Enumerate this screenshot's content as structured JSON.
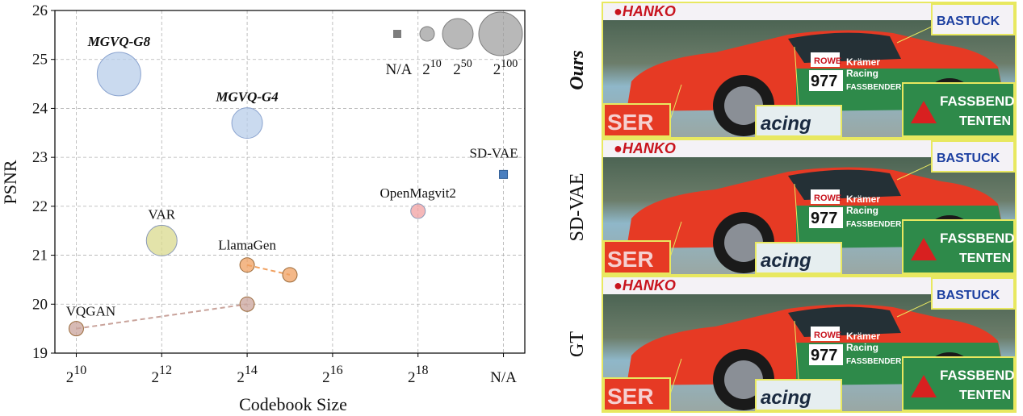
{
  "chart_data": {
    "type": "scatter",
    "xlabel": "Codebook Size",
    "ylabel": "PSNR",
    "ylim": [
      19,
      26
    ],
    "y_ticks": [
      "19",
      "20",
      "21",
      "22",
      "23",
      "24",
      "25",
      "26"
    ],
    "x_ticks": [
      {
        "base": "2",
        "exp": "10"
      },
      {
        "base": "2",
        "exp": "12"
      },
      {
        "base": "2",
        "exp": "14"
      },
      {
        "base": "2",
        "exp": "16"
      },
      {
        "base": "2",
        "exp": "18"
      },
      {
        "base": "N/A",
        "exp": ""
      }
    ],
    "grid": true,
    "series": [
      {
        "name": "MGVQ-G8",
        "x": "2^11",
        "y": 24.7,
        "size": "2^100",
        "color": "#b8cdea",
        "ours": true
      },
      {
        "name": "MGVQ-G4",
        "x": "2^14",
        "y": 23.7,
        "size": "2^50",
        "color": "#b8cdea",
        "ours": true
      },
      {
        "name": "VAR",
        "x": "2^12",
        "y": 21.3,
        "size": "2^50",
        "color": "#d9d98e"
      },
      {
        "name": "SD-VAE",
        "x": "N/A",
        "y": 22.65,
        "size": "N/A",
        "color": "#4a7fbf",
        "marker": "square"
      },
      {
        "name": "OpenMagvit2",
        "x": "2^18",
        "y": 21.9,
        "size": "2^10",
        "color": "#f2a0a2"
      },
      {
        "name": "LlamaGen",
        "points": [
          {
            "x": "2^14",
            "y": 20.8
          },
          {
            "x": "2^15",
            "y": 20.6
          }
        ],
        "size": "2^10",
        "color": "#f0a060",
        "connected": true
      },
      {
        "name": "VQGAN",
        "points": [
          {
            "x": "2^10",
            "y": 19.5
          },
          {
            "x": "2^14",
            "y": 20.0
          }
        ],
        "size": "2^10",
        "color": "#c9a39b",
        "connected": true
      }
    ],
    "size_legend": {
      "placement": "top-right",
      "entries": [
        {
          "base": "N/A",
          "exp": ""
        },
        {
          "base": "2",
          "exp": "10"
        },
        {
          "base": "2",
          "exp": "50"
        },
        {
          "base": "2",
          "exp": "100"
        }
      ]
    }
  },
  "comparison": {
    "rows": [
      {
        "label": "Ours",
        "ours": true
      },
      {
        "label": "SD-VAE",
        "ours": false
      },
      {
        "label": "GT",
        "ours": false
      }
    ]
  },
  "colors": {
    "car_red": "#e63a24",
    "car_green": "#2e8a4a",
    "inset_border": "#e8e860",
    "track_blue": "#7bbfd6"
  }
}
